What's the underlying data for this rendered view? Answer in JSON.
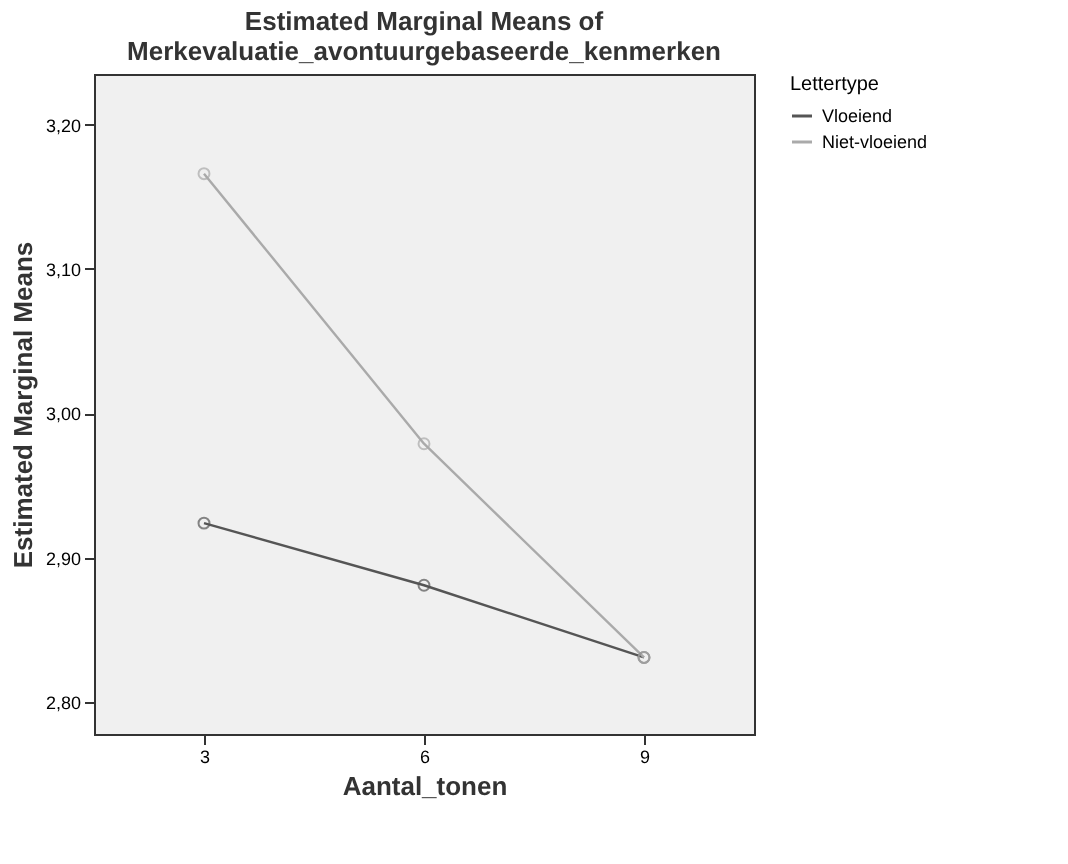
{
  "chart_data": {
    "type": "line",
    "title": [
      "Estimated Marginal Means of",
      "Merkevaluatie_avontuurgebaseerde_kenmerken"
    ],
    "xlabel": "Aantal_tonen",
    "ylabel": "Estimated Marginal Means",
    "legend_title": "Lettertype",
    "categories": [
      "3",
      "6",
      "9"
    ],
    "series": [
      {
        "name": "Vloeiend",
        "color": "#555555",
        "values": [
          2.924,
          2.881,
          2.831
        ]
      },
      {
        "name": "Niet-vloeiend",
        "color": "#aaaaaa",
        "values": [
          3.166,
          2.979,
          2.831
        ]
      }
    ],
    "ylim": [
      2.778,
      3.235
    ],
    "yticks": [
      {
        "value": 2.8,
        "label": "2,80"
      },
      {
        "value": 2.9,
        "label": "2,90"
      },
      {
        "value": 3.0,
        "label": "3,00"
      },
      {
        "value": 3.1,
        "label": "3,10"
      },
      {
        "value": 3.2,
        "label": "3,20"
      }
    ],
    "marker": "circle",
    "legend": "top right",
    "grid": false
  }
}
